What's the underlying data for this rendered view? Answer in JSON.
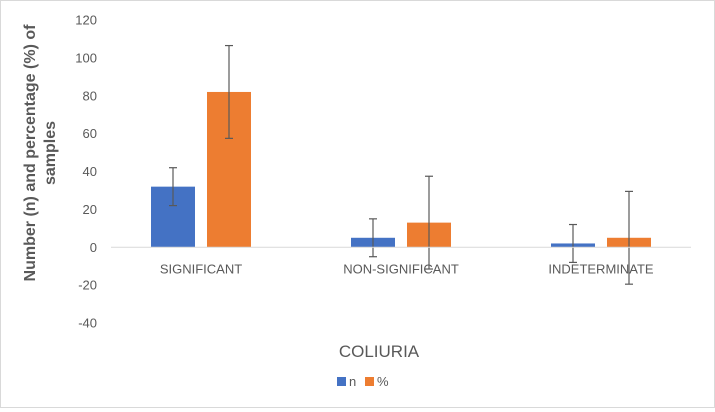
{
  "chart_data": {
    "type": "bar",
    "title": "",
    "xlabel": "COLIURIA",
    "ylabel": "Number (n) and percentage (%) of samples",
    "categories": [
      "SIGNIFICANT",
      "NON-SIGNIFICANT",
      "INDETERMINATE"
    ],
    "series": [
      {
        "name": "n",
        "values": [
          32,
          5,
          2
        ],
        "error": [
          10,
          10,
          10
        ],
        "color": "#4472C4"
      },
      {
        "name": "%",
        "values": [
          82,
          13,
          5
        ],
        "error": [
          24.5,
          24.5,
          24.5
        ],
        "color": "#ED7D31"
      }
    ],
    "ylim": [
      -40,
      120
    ],
    "yticks": [
      -40,
      -20,
      0,
      20,
      40,
      60,
      80,
      100,
      120
    ],
    "grid": false,
    "legend": "bottom"
  }
}
